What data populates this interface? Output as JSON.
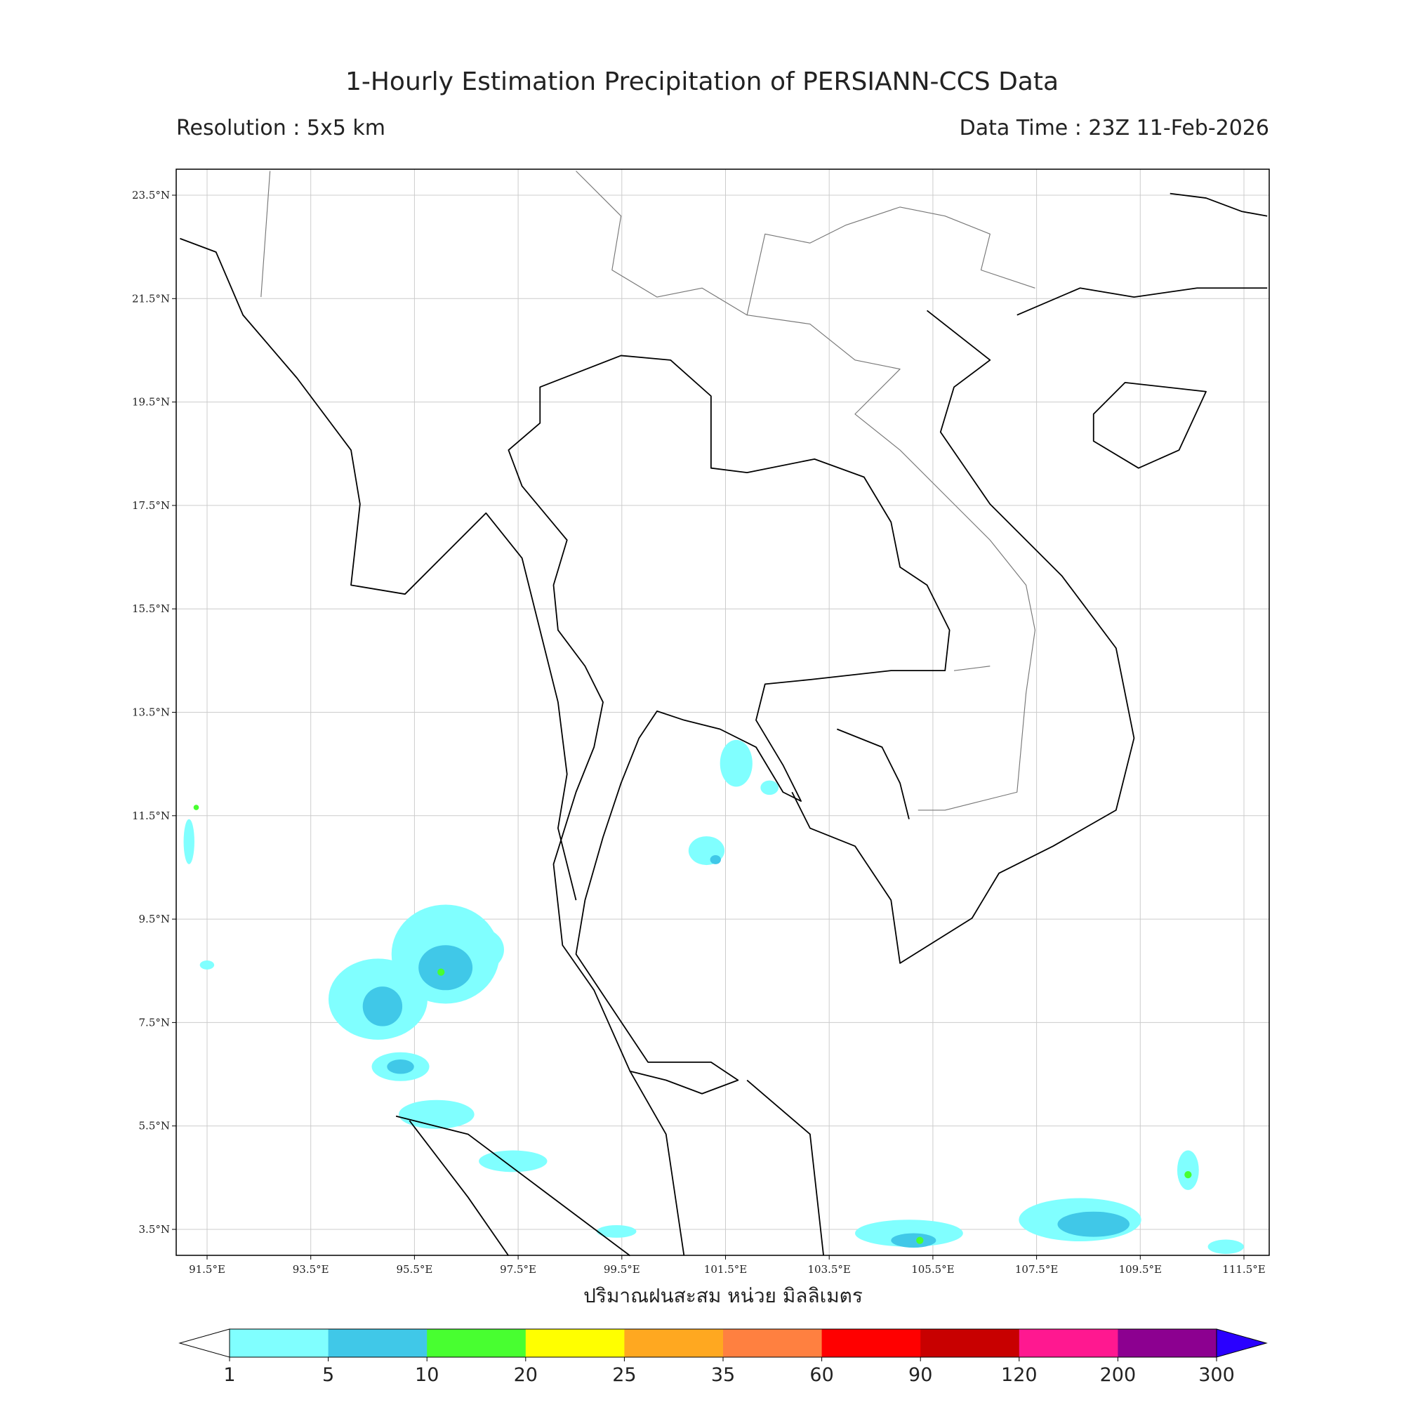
{
  "header": {
    "title": "1-Hourly Estimation Precipitation of PERSIANN-CCS Data",
    "resolution": "Resolution : 5x5 km",
    "data_time": "Data Time : 23Z 11-Feb-2026"
  },
  "map": {
    "lat_labels": [
      "23.5°N",
      "21.5°N",
      "19.5°N",
      "17.5°N",
      "15.5°N",
      "13.5°N",
      "11.5°N",
      "9.5°N",
      "7.5°N",
      "5.5°N",
      "3.5°N"
    ],
    "lon_labels": [
      "91.5°E",
      "93.5°E",
      "95.5°E",
      "97.5°E",
      "99.5°E",
      "101.5°E",
      "103.5°E",
      "105.5°E",
      "107.5°E",
      "109.5°E",
      "111.5°E"
    ],
    "xlabel": "ปริมาณฝนสะสม หน่วย มิลลิเมตร"
  },
  "colorbar": {
    "levels": [
      1,
      5,
      10,
      20,
      25,
      35,
      60,
      90,
      120,
      200,
      300
    ],
    "colors": [
      "#80ffff",
      "#40c8e8",
      "#48ff30",
      "#ffff00",
      "#ffa820",
      "#ff8040",
      "#ff0000",
      "#c80000",
      "#ff1890",
      "#8c0090"
    ],
    "under_color": "#ffffff",
    "over_color": "#2a00ff"
  }
}
